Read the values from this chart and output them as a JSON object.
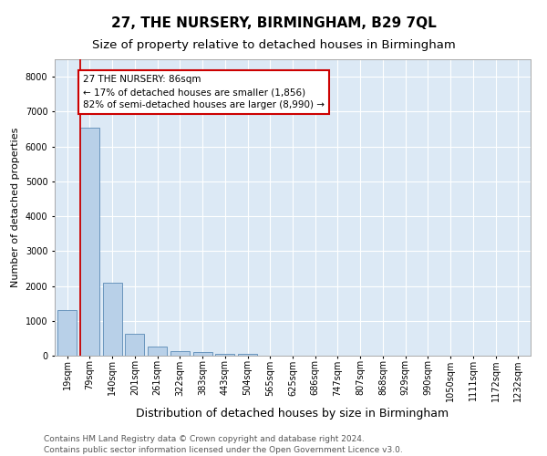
{
  "title": "27, THE NURSERY, BIRMINGHAM, B29 7QL",
  "subtitle": "Size of property relative to detached houses in Birmingham",
  "xlabel": "Distribution of detached houses by size in Birmingham",
  "ylabel": "Number of detached properties",
  "categories": [
    "19sqm",
    "79sqm",
    "140sqm",
    "201sqm",
    "261sqm",
    "322sqm",
    "383sqm",
    "443sqm",
    "504sqm",
    "565sqm",
    "625sqm",
    "686sqm",
    "747sqm",
    "807sqm",
    "868sqm",
    "929sqm",
    "990sqm",
    "1050sqm",
    "1111sqm",
    "1172sqm",
    "1232sqm"
  ],
  "values": [
    1300,
    6550,
    2080,
    620,
    250,
    130,
    95,
    65,
    65,
    0,
    0,
    0,
    0,
    0,
    0,
    0,
    0,
    0,
    0,
    0,
    0
  ],
  "bar_color": "#b8d0e8",
  "bar_edge_color": "#5a8ab5",
  "subject_line_color": "#cc0000",
  "annotation_text": "27 THE NURSERY: 86sqm\n← 17% of detached houses are smaller (1,856)\n82% of semi-detached houses are larger (8,990) →",
  "annotation_box_edge_color": "#cc0000",
  "ylim": [
    0,
    8500
  ],
  "yticks": [
    0,
    1000,
    2000,
    3000,
    4000,
    5000,
    6000,
    7000,
    8000
  ],
  "plot_bg_color": "#dce9f5",
  "footer_line1": "Contains HM Land Registry data © Crown copyright and database right 2024.",
  "footer_line2": "Contains public sector information licensed under the Open Government Licence v3.0.",
  "title_fontsize": 11,
  "subtitle_fontsize": 9.5,
  "xlabel_fontsize": 9,
  "ylabel_fontsize": 8,
  "tick_fontsize": 7,
  "annotation_fontsize": 7.5,
  "footer_fontsize": 6.5
}
